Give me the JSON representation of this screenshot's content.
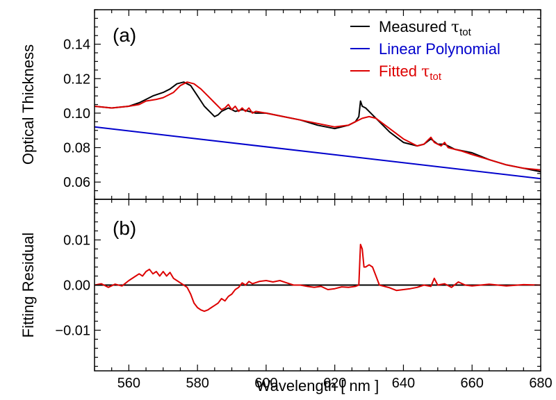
{
  "chart_data": [
    {
      "type": "line",
      "panel_label": "(a)",
      "ylabel": "Optical Thickness",
      "xlabel": "",
      "xlim": [
        550,
        680
      ],
      "ylim": [
        0.05,
        0.16
      ],
      "x_ticks": [
        560,
        580,
        600,
        620,
        640,
        660,
        680
      ],
      "y_ticks": [
        0.06,
        0.08,
        0.1,
        0.12,
        0.14
      ],
      "y_tick_labels": [
        "0.06",
        "0.08",
        "0.10",
        "0.12",
        "0.14"
      ],
      "legend_position": "top-right",
      "series": [
        {
          "name": "Measured",
          "symbol": "τ",
          "subscript": "tot",
          "color": "#000000",
          "x": [
            550,
            555,
            560,
            563,
            565,
            567,
            570,
            572,
            574,
            576,
            578,
            580,
            582,
            584,
            585,
            586,
            587,
            589,
            591,
            593,
            595,
            597,
            600,
            605,
            610,
            615,
            620,
            624,
            626,
            627,
            627.5,
            628,
            629,
            631,
            633,
            636,
            640,
            644,
            646,
            648,
            650,
            652,
            655,
            660,
            665,
            670,
            675,
            680
          ],
          "values": [
            0.104,
            0.103,
            0.104,
            0.106,
            0.108,
            0.11,
            0.112,
            0.114,
            0.117,
            0.118,
            0.116,
            0.11,
            0.104,
            0.1,
            0.098,
            0.099,
            0.101,
            0.103,
            0.101,
            0.102,
            0.101,
            0.1,
            0.1,
            0.098,
            0.096,
            0.093,
            0.091,
            0.093,
            0.095,
            0.098,
            0.107,
            0.104,
            0.103,
            0.099,
            0.095,
            0.089,
            0.083,
            0.081,
            0.082,
            0.085,
            0.082,
            0.082,
            0.079,
            0.077,
            0.073,
            0.07,
            0.068,
            0.066
          ]
        },
        {
          "name": "Linear Polynomial",
          "color": "#0000cc",
          "x": [
            550,
            680
          ],
          "values": [
            0.092,
            0.062
          ]
        },
        {
          "name": "Fitted",
          "symbol": "τ",
          "subscript": "tot",
          "color": "#dd0000",
          "x": [
            550,
            555,
            560,
            563,
            565,
            568,
            570,
            573,
            575,
            577,
            579,
            581,
            583,
            585,
            587,
            588,
            589,
            590,
            591,
            592,
            593,
            594,
            595,
            596,
            597,
            600,
            605,
            610,
            615,
            620,
            624,
            626,
            628,
            630,
            632,
            634,
            636,
            640,
            644,
            646,
            647,
            648,
            649,
            650,
            651,
            652,
            653,
            655,
            657,
            660,
            665,
            670,
            675,
            680
          ],
          "values": [
            0.104,
            0.103,
            0.104,
            0.105,
            0.107,
            0.108,
            0.109,
            0.112,
            0.116,
            0.118,
            0.117,
            0.114,
            0.11,
            0.106,
            0.102,
            0.103,
            0.105,
            0.102,
            0.104,
            0.101,
            0.103,
            0.101,
            0.103,
            0.1,
            0.101,
            0.1,
            0.098,
            0.096,
            0.094,
            0.092,
            0.093,
            0.095,
            0.097,
            0.098,
            0.097,
            0.094,
            0.091,
            0.085,
            0.081,
            0.082,
            0.084,
            0.086,
            0.083,
            0.082,
            0.081,
            0.083,
            0.08,
            0.079,
            0.078,
            0.076,
            0.073,
            0.07,
            0.068,
            0.067
          ]
        }
      ]
    },
    {
      "type": "line",
      "panel_label": "(b)",
      "ylabel": "Fitting Residual",
      "xlabel": "Wavelength [ nm ]",
      "xlim": [
        550,
        680
      ],
      "ylim": [
        -0.019,
        0.019
      ],
      "x_ticks": [
        560,
        580,
        600,
        620,
        640,
        660,
        680
      ],
      "x_tick_labels": [
        "560",
        "580",
        "600",
        "620",
        "640",
        "660",
        "680"
      ],
      "y_ticks": [
        -0.01,
        0.0,
        0.01
      ],
      "y_tick_labels": [
        "−0.01",
        "0.00",
        "0.01"
      ],
      "series": [
        {
          "name": "Zero line",
          "color": "#000000",
          "x": [
            550,
            680
          ],
          "values": [
            0,
            0
          ]
        },
        {
          "name": "Residual",
          "color": "#dd0000",
          "x": [
            550,
            552,
            554,
            556,
            558,
            560,
            562,
            563,
            564,
            565,
            566,
            567,
            568,
            569,
            570,
            571,
            572,
            573,
            574,
            575,
            576,
            577,
            578,
            579,
            580,
            581,
            582,
            583,
            584,
            585,
            586,
            587,
            588,
            589,
            590,
            591,
            592,
            593,
            594,
            595,
            596,
            598,
            600,
            602,
            604,
            606,
            608,
            610,
            612,
            614,
            616,
            618,
            620,
            622,
            624,
            626,
            627,
            627.5,
            628,
            628.5,
            629,
            630,
            631,
            632,
            633,
            634,
            636,
            638,
            640,
            642,
            644,
            646,
            648,
            649,
            650,
            652,
            654,
            656,
            658,
            660,
            665,
            670,
            675,
            680
          ],
          "values": [
            0.0,
            0.0003,
            -0.0005,
            0.0002,
            -0.0002,
            0.001,
            0.002,
            0.0025,
            0.002,
            0.003,
            0.0035,
            0.0025,
            0.003,
            0.002,
            0.003,
            0.002,
            0.0028,
            0.0015,
            0.001,
            0.0005,
            0.0,
            -0.0005,
            -0.002,
            -0.004,
            -0.005,
            -0.0055,
            -0.0058,
            -0.0055,
            -0.005,
            -0.0045,
            -0.004,
            -0.003,
            -0.0035,
            -0.0025,
            -0.002,
            -0.001,
            -0.0005,
            0.0005,
            0.0,
            0.0008,
            0.0003,
            0.0008,
            0.001,
            0.0007,
            0.001,
            0.0005,
            0.0,
            0.0,
            -0.0003,
            -0.0005,
            -0.0003,
            -0.001,
            -0.0008,
            -0.0004,
            -0.0005,
            -0.0003,
            0.0,
            0.009,
            0.008,
            0.004,
            0.004,
            0.0045,
            0.004,
            0.002,
            0.0,
            -0.0002,
            -0.0006,
            -0.0012,
            -0.001,
            -0.0008,
            -0.0005,
            0.0,
            -0.0003,
            0.0015,
            0.0,
            0.0003,
            -0.0005,
            0.0007,
            0.0,
            -0.0002,
            0.0002,
            -0.0002,
            0.0001,
            0.0
          ]
        }
      ]
    }
  ]
}
